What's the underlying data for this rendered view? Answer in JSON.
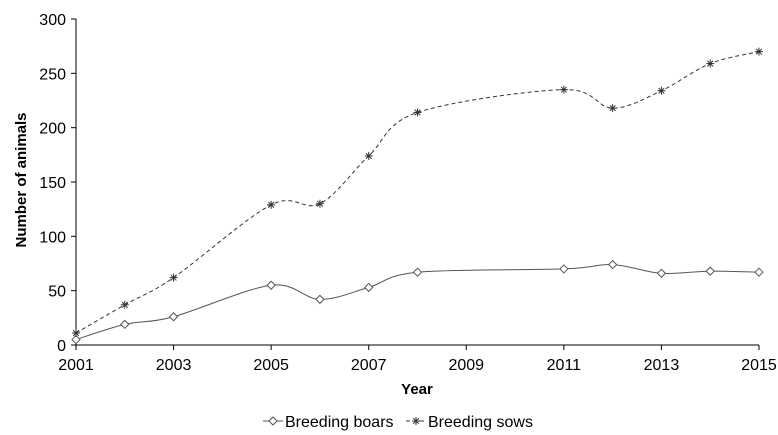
{
  "chart_data": {
    "type": "line",
    "title": "",
    "xlabel": "Year",
    "ylabel": "Number of animals",
    "xlim": [
      2001,
      2015
    ],
    "ylim": [
      0,
      300
    ],
    "x_ticks": [
      2001,
      2003,
      2005,
      2007,
      2009,
      2011,
      2013,
      2015
    ],
    "y_ticks": [
      0,
      50,
      100,
      150,
      200,
      250,
      300
    ],
    "x_tick_labels": [
      "2001",
      "2003",
      "2005",
      "2007",
      "2009",
      "2011",
      "2013",
      "2015"
    ],
    "y_tick_labels": [
      "0",
      "50",
      "100",
      "150",
      "200",
      "250",
      "300"
    ],
    "grid": false,
    "legend_position": "bottom",
    "series": [
      {
        "name": "Breeding boars",
        "marker": "diamond",
        "line_style": "solid",
        "color": "#555555",
        "x": [
          2001,
          2002,
          2003,
          2005,
          2006,
          2007,
          2008,
          2011,
          2012,
          2013,
          2014,
          2015
        ],
        "y": [
          5,
          19,
          26,
          55,
          42,
          53,
          67,
          70,
          74,
          66,
          68,
          67
        ]
      },
      {
        "name": "Breeding sows",
        "marker": "asterisk",
        "line_style": "dashed",
        "color": "#333333",
        "x": [
          2001,
          2002,
          2003,
          2005,
          2006,
          2007,
          2008,
          2011,
          2012,
          2013,
          2014,
          2015
        ],
        "y": [
          11,
          37,
          62,
          129,
          130,
          174,
          214,
          235,
          218,
          234,
          259,
          270
        ]
      }
    ]
  }
}
